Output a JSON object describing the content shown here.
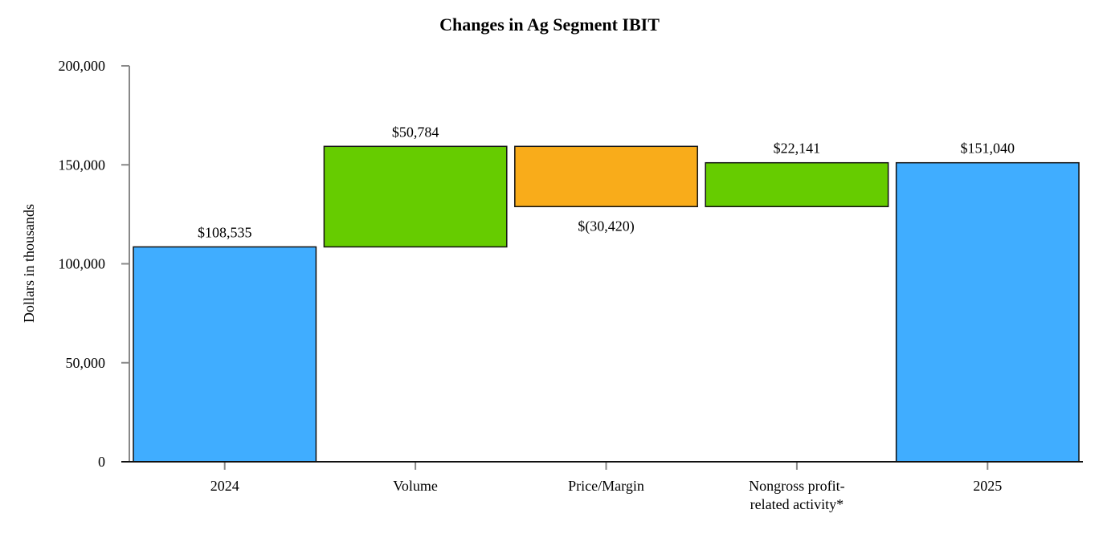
{
  "chart_data": {
    "type": "waterfall",
    "title": "Changes in Ag Segment IBIT",
    "xlabel": "",
    "ylabel": "Dollars in thousands",
    "ylim": [
      0,
      200000
    ],
    "yticks": [
      0,
      50000,
      100000,
      150000,
      200000
    ],
    "ytick_labels": [
      "0",
      "50,000",
      "100,000",
      "150,000",
      "200,000"
    ],
    "grid": false,
    "categories": [
      {
        "label_lines": [
          "2024"
        ],
        "value": 108535,
        "kind": "total",
        "data_label": "$108,535",
        "color": "#40adff"
      },
      {
        "label_lines": [
          "Volume"
        ],
        "value": 50784,
        "kind": "increase",
        "data_label": "$50,784",
        "color": "#66cc00"
      },
      {
        "label_lines": [
          "Price/Margin"
        ],
        "value": -30420,
        "kind": "decrease",
        "data_label": "$(30,420)",
        "color": "#f9ac1a"
      },
      {
        "label_lines": [
          "Nongross profit-",
          "related activity*"
        ],
        "value": 22141,
        "kind": "increase",
        "data_label": "$22,141",
        "color": "#66cc00"
      },
      {
        "label_lines": [
          "2025"
        ],
        "value": 151040,
        "kind": "total",
        "data_label": "$151,040",
        "color": "#40adff"
      }
    ]
  }
}
